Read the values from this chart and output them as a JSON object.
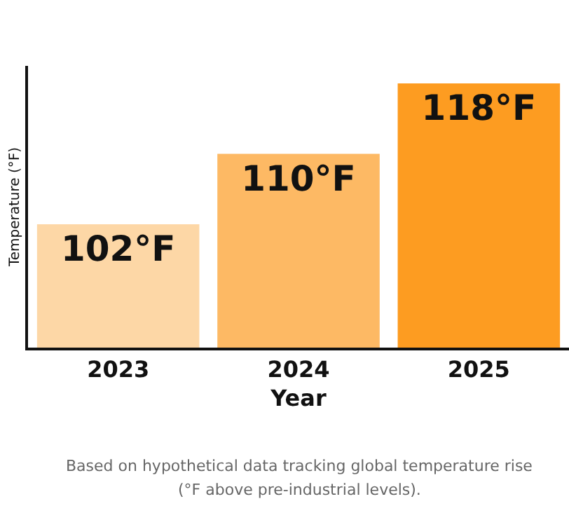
{
  "chart_data": {
    "type": "bar",
    "xlabel": "Year",
    "ylabel": "Temperature (°F)",
    "categories": [
      "2023",
      "2024",
      "2025"
    ],
    "values": [
      102,
      110,
      118
    ],
    "value_labels": [
      "102°F",
      "110°F",
      "118°F"
    ],
    "colors": [
      "#fdd7a6",
      "#fdb964",
      "#fd9c21"
    ],
    "ylim": [
      88,
      120
    ],
    "tick_labels": "x",
    "annotations": [
      "Based on hypothetical data tracking global temperature rise",
      "(°F above pre-industrial levels)."
    ]
  }
}
